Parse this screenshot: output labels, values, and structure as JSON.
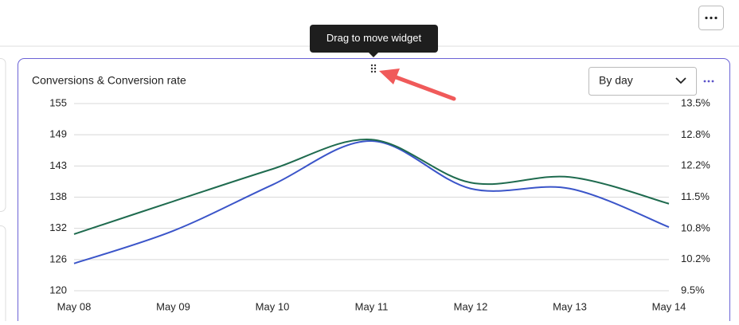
{
  "tooltip": "Drag to move widget",
  "widget": {
    "dropdown": "By day"
  },
  "chart_data": {
    "type": "line",
    "title": "Conversions & Conversion rate",
    "categories": [
      "May 08",
      "May 09",
      "May 10",
      "May 11",
      "May 12",
      "May 13",
      "May 14"
    ],
    "series": [
      {
        "color": "#3b55c9",
        "values": [
          125.1,
          131.2,
          139.8,
          148.0,
          139.1,
          139.1,
          131.9
        ]
      },
      {
        "color": "#1f6b4f",
        "axis": "y2",
        "values": [
          10.71,
          11.41,
          12.1,
          12.73,
          11.81,
          11.93,
          11.36
        ]
      }
    ],
    "ylim": [
      120,
      155
    ],
    "yticks": [
      120,
      {
        "value": 125.83,
        "label": "126"
      },
      {
        "value": 131.67,
        "label": "132"
      },
      {
        "value": 137.5,
        "label": "138"
      },
      {
        "value": 143.33,
        "label": "143"
      },
      {
        "value": 149.17,
        "label": "149"
      },
      155
    ],
    "y2lim": [
      9.5,
      13.5
    ],
    "y2ticks": [
      {
        "value": 9.5,
        "label": "9.5%"
      },
      {
        "value": 10.17,
        "label": "10.2%"
      },
      {
        "value": 10.83,
        "label": "10.8%"
      },
      {
        "value": 11.5,
        "label": "11.5%"
      },
      {
        "value": 12.17,
        "label": "12.2%"
      },
      {
        "value": 12.83,
        "label": "12.8%"
      },
      {
        "value": 13.5,
        "label": "13.5%"
      }
    ],
    "grid": true
  }
}
